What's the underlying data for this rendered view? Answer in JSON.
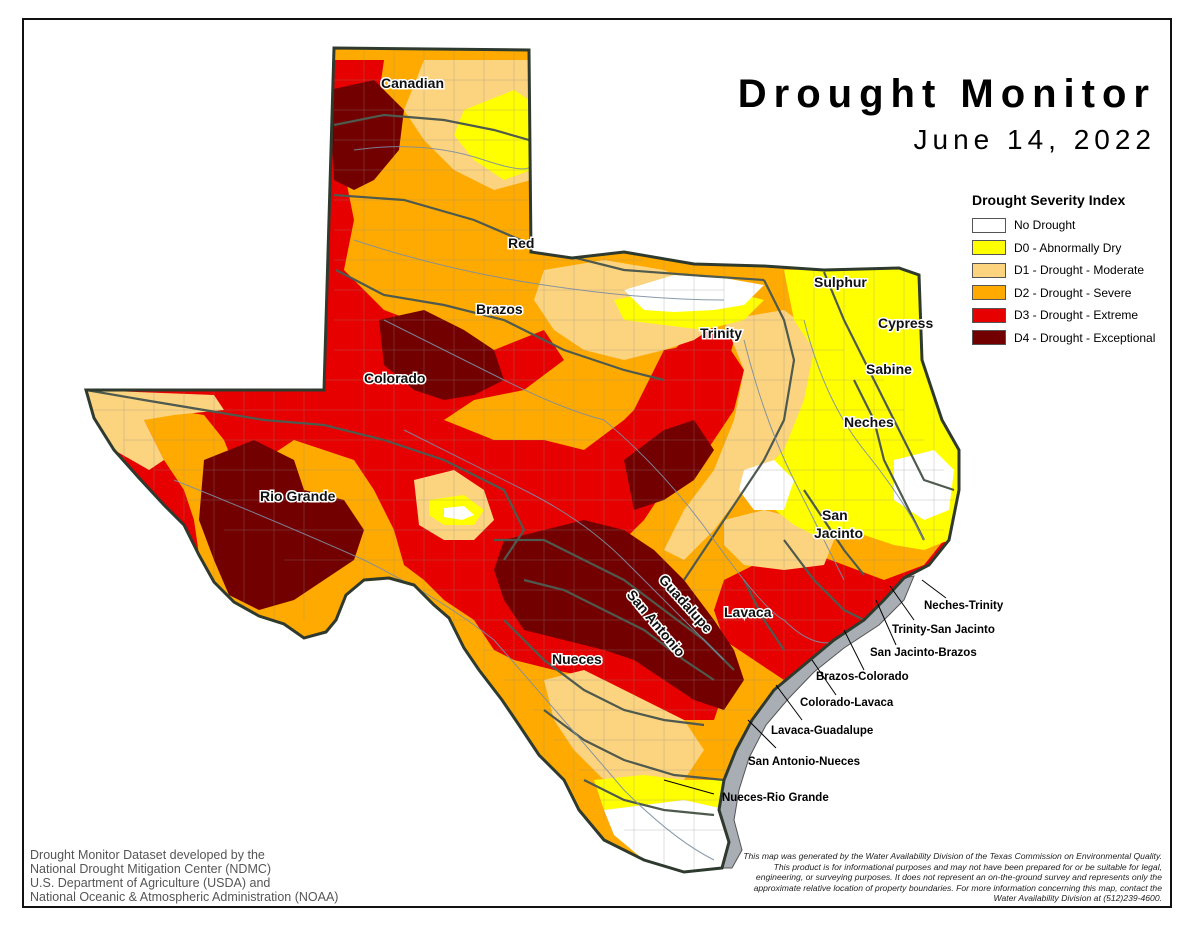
{
  "title": "Drought Monitor",
  "date": "June 14, 2022",
  "legend": {
    "title": "Drought Severity Index",
    "items": [
      {
        "label": "No Drought",
        "color": "#ffffff"
      },
      {
        "label": "D0 - Abnormally Dry",
        "color": "#ffff00"
      },
      {
        "label": "D1 - Drought - Moderate",
        "color": "#fcd37f"
      },
      {
        "label": "D2 - Drought - Severe",
        "color": "#ffaa00"
      },
      {
        "label": "D3 - Drought - Extreme",
        "color": "#e60000"
      },
      {
        "label": "D4 - Drought - Exceptional",
        "color": "#730000"
      }
    ]
  },
  "river_basins": {
    "canadian": "Canadian",
    "red": "Red",
    "brazos": "Brazos",
    "colorado": "Colorado",
    "rio_grande": "Rio Grande",
    "sulphur": "Sulphur",
    "cypress": "Cypress",
    "trinity": "Trinity",
    "sabine": "Sabine",
    "neches": "Neches",
    "san_jacinto_1": "San",
    "san_jacinto_2": "Jacinto",
    "guadalupe": "Guadalupe",
    "san_antonio": "San Antonio",
    "lavaca": "Lavaca",
    "nueces": "Nueces"
  },
  "coastal_basins": {
    "neches_trinity": "Neches-Trinity",
    "trinity_san_jacinto": "Trinity-San Jacinto",
    "san_jacinto_brazos": "San Jacinto-Brazos",
    "brazos_colorado": "Brazos-Colorado",
    "colorado_lavaca": "Colorado-Lavaca",
    "lavaca_guadalupe": "Lavaca-Guadalupe",
    "san_antonio_nueces": "San Antonio-Nueces",
    "nueces_rio_grande": "Nueces-Rio Grande"
  },
  "credit": {
    "line1": "Drought Monitor Dataset developed by the",
    "line2": "National Drought Mitigation Center (NDMC)",
    "line3": "U.S. Department of Agriculture (USDA) and",
    "line4": "National Oceanic & Atmospheric Administration (NOAA)"
  },
  "disclaimer": "This map was generated by the Water Availability Division of the Texas Commission on Environmental Quality. This product is for informational purposes and may not have been prepared for or be suitable for legal, engineering, or surveying purposes. It does not represent an on-the-ground survey and represents only the approximate relative location of property boundaries. For more information concerning this map, contact the Water Availability Division at (512)239-4600."
}
